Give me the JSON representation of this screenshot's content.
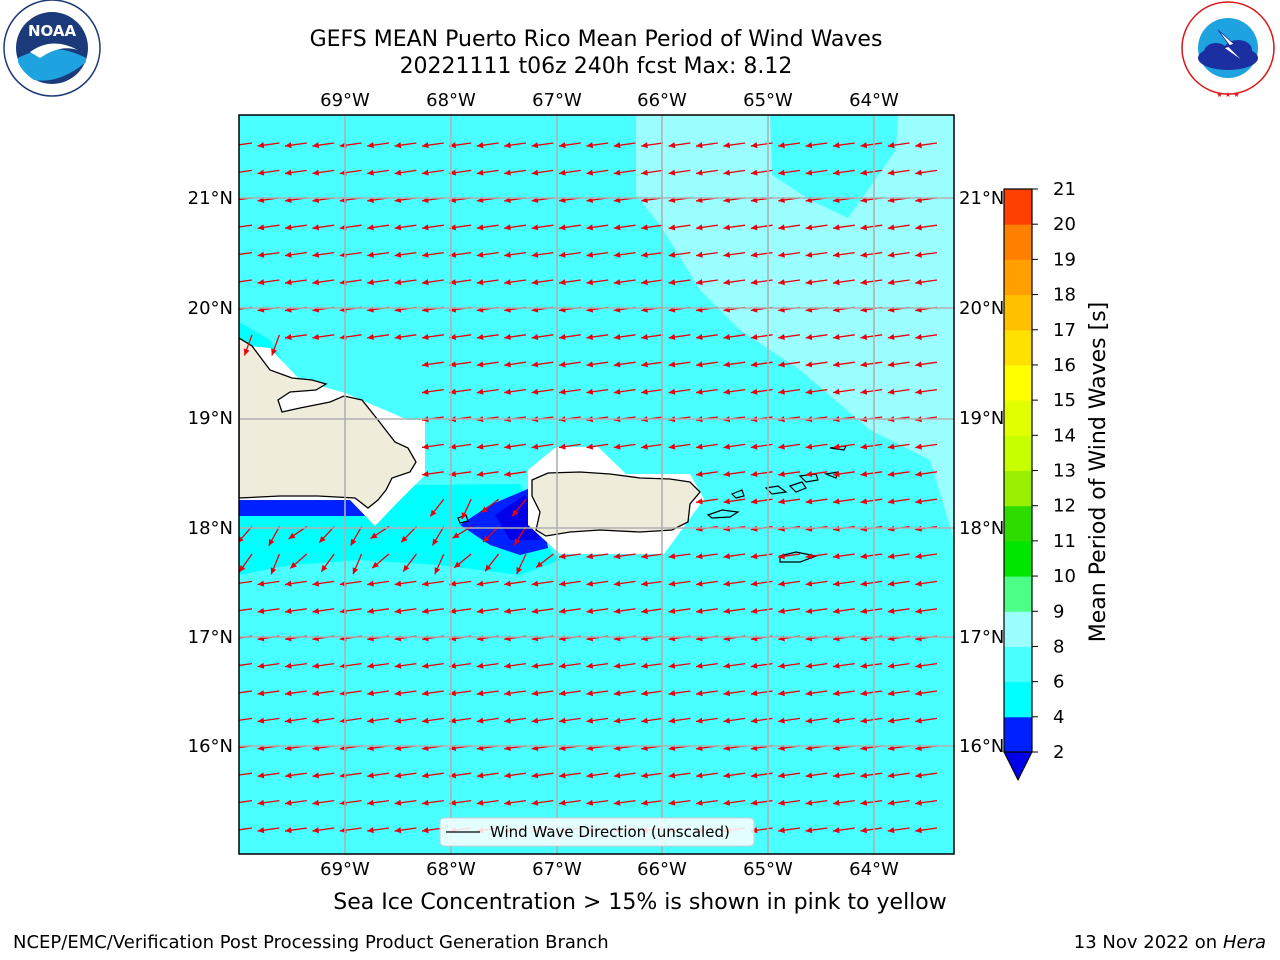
{
  "header": {
    "title": "GEFS MEAN Puerto Rico Mean Period of Wind Waves",
    "subtitle": "20221111 t06z 240h fcst   Max: 8.12"
  },
  "logos": {
    "left": "NOAA",
    "left_ring_text": "NATIONAL OCEANIC AND ATMOSPHERIC ADMINISTRATION · U.S. DEPARTMENT OF COMMERCE",
    "right_ring_text": "NATIONAL WEATHER SERVICE"
  },
  "map": {
    "lon_labels": [
      "69°W",
      "68°W",
      "67°W",
      "66°W",
      "65°W",
      "64°W"
    ],
    "lat_labels": [
      "21°N",
      "20°N",
      "19°N",
      "18°N",
      "17°N",
      "16°N"
    ],
    "legend_label": "Wind Wave Direction (unscaled)",
    "arrow_color": "#e8000b",
    "land_color": "#efecdc"
  },
  "colorbar": {
    "label": "Mean Period of Wind Waves [s]",
    "ticks": [
      "2",
      "4",
      "6",
      "8",
      "9",
      "10",
      "11",
      "12",
      "13",
      "14",
      "15",
      "16",
      "17",
      "18",
      "19",
      "20",
      "21"
    ],
    "colors": [
      "#0021ff",
      "#00ffff",
      "#4affff",
      "#9cffff",
      "#4cff86",
      "#00e600",
      "#2fdc00",
      "#9af000",
      "#c8ff00",
      "#e1ff00",
      "#ffff00",
      "#ffe100",
      "#ffc000",
      "#ffa000",
      "#ff8000",
      "#ff4000",
      "#ff0000"
    ],
    "under_color": "#0000e8"
  },
  "footer": {
    "note": "Sea Ice Concentration > 15% is shown in pink to yellow",
    "left": "NCEP/EMC/Verification Post Processing Product Generation Branch",
    "right_date": "13 Nov 2022 on",
    "right_host": "Hera"
  }
}
